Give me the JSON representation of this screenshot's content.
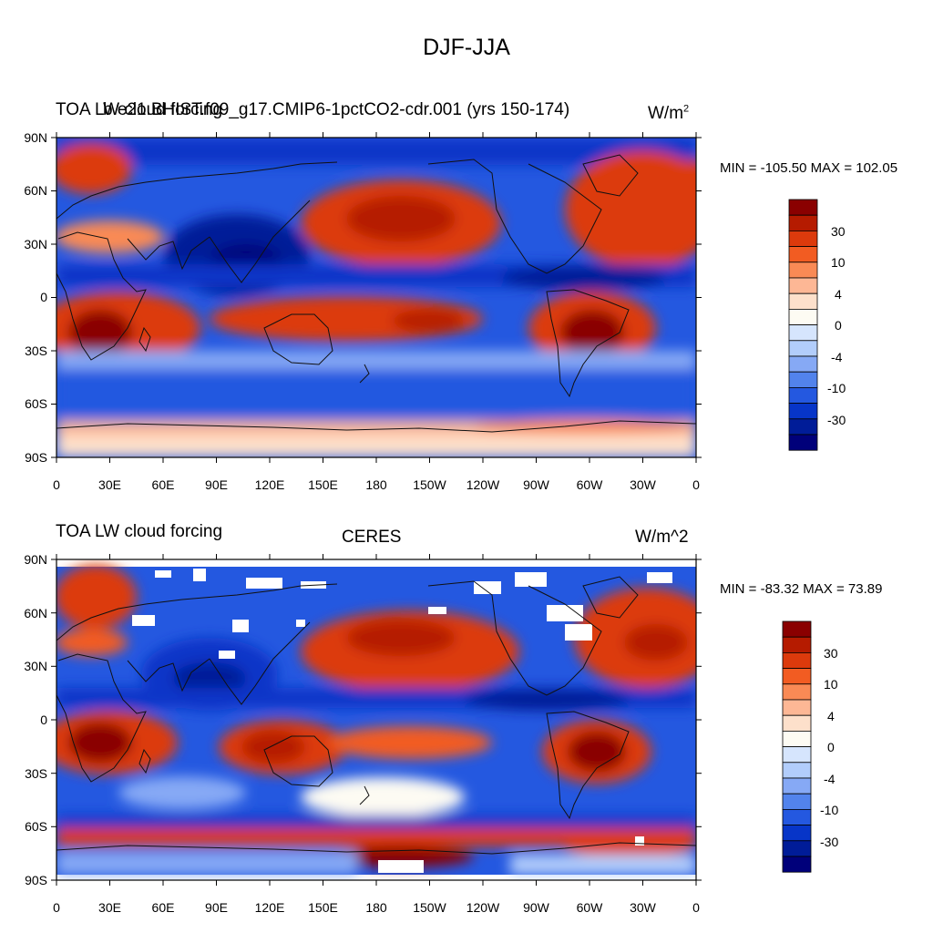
{
  "figure": {
    "main_title": "DJF-JJA",
    "colorbar_labels": [
      "30",
      "10",
      "4",
      "0",
      "-4",
      "-10",
      "-30"
    ],
    "colorbar_colors": [
      "#8a0000",
      "#b51b00",
      "#dc3a0c",
      "#f25c22",
      "#f98a55",
      "#fdb795",
      "#fde0cb",
      "#fdfbf3",
      "#d6e5fd",
      "#b2cdfb",
      "#86a9f5",
      "#5283ec",
      "#2458e0",
      "#0735c8",
      "#001c98",
      "#00007a"
    ],
    "lat_labels": [
      "90N",
      "60N",
      "30N",
      "0",
      "30S",
      "60S",
      "90S"
    ],
    "lon_labels": [
      "0",
      "30E",
      "60E",
      "90E",
      "120E",
      "150E",
      "180",
      "150W",
      "120W",
      "90W",
      "60W",
      "30W",
      "0"
    ]
  },
  "panels": [
    {
      "left_label": "TOA LW cloud forcing",
      "center_label": "b.e21.BHIST.f09_g17.CMIP6-1pctCO2-cdr.001 (yrs 150-174)",
      "units": "W/m",
      "units_sup": "2",
      "min_label": "MIN = -105.50",
      "max_label": "MAX = 102.05"
    },
    {
      "left_label": "TOA LW cloud forcing",
      "center_label": "CERES",
      "units": "W/m^2",
      "min_label": "MIN = -83.32",
      "max_label": "MAX =  73.89"
    }
  ]
}
